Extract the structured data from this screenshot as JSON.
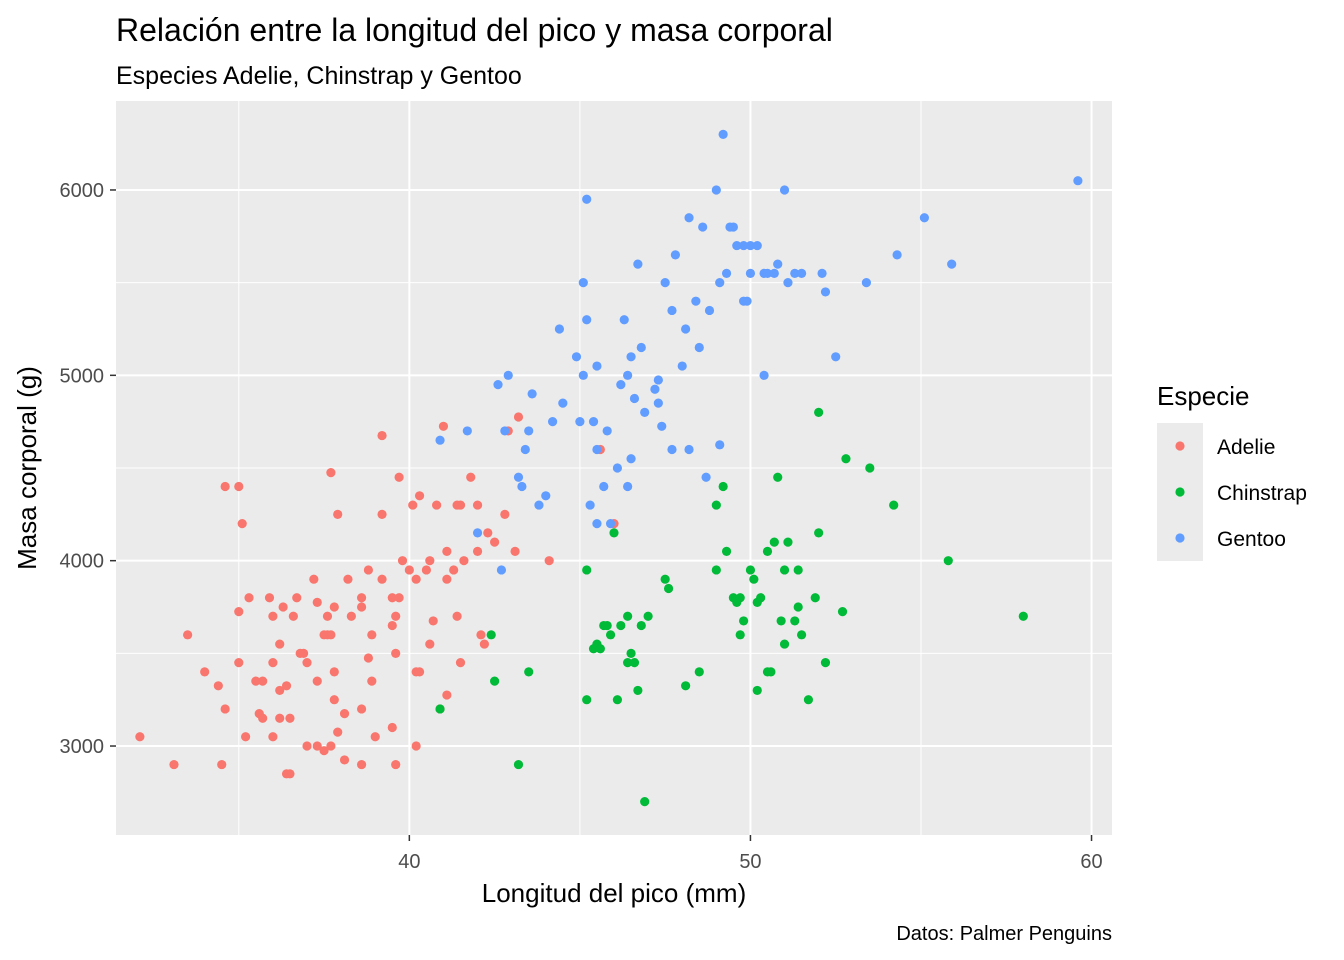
{
  "chart_data": {
    "type": "scatter",
    "title": "Relación entre la longitud del pico y masa corporal",
    "subtitle": "Especies Adelie, Chinstrap y Gentoo",
    "xlabel": "Longitud del pico (mm)",
    "ylabel": "Masa corporal (g)",
    "caption": "Datos: Palmer Penguins",
    "xlim": [
      31.4,
      60.6
    ],
    "ylim": [
      2520,
      6480
    ],
    "xticks": [
      40,
      50,
      60
    ],
    "yticks": [
      3000,
      4000,
      5000,
      6000
    ],
    "grid": true,
    "legend_title": "Especie",
    "legend_position": "right",
    "series": [
      {
        "name": "Adelie",
        "color": "#F8766D",
        "points": [
          [
            32.1,
            3050
          ],
          [
            33.1,
            2900
          ],
          [
            33.5,
            3600
          ],
          [
            34.0,
            3400
          ],
          [
            34.4,
            3325
          ],
          [
            34.5,
            2900
          ],
          [
            34.6,
            3200
          ],
          [
            34.6,
            4400
          ],
          [
            35.0,
            3450
          ],
          [
            35.0,
            3725
          ],
          [
            35.1,
            4200
          ],
          [
            35.2,
            3050
          ],
          [
            35.3,
            3800
          ],
          [
            35.5,
            3350
          ],
          [
            35.6,
            3175
          ],
          [
            35.7,
            3350
          ],
          [
            35.7,
            3150
          ],
          [
            35.9,
            3800
          ],
          [
            36.0,
            3700
          ],
          [
            36.0,
            3450
          ],
          [
            36.0,
            3050
          ],
          [
            36.2,
            3550
          ],
          [
            36.2,
            3300
          ],
          [
            36.2,
            3150
          ],
          [
            36.3,
            3750
          ],
          [
            36.4,
            3325
          ],
          [
            36.4,
            2850
          ],
          [
            36.5,
            3150
          ],
          [
            36.5,
            2850
          ],
          [
            36.6,
            3700
          ],
          [
            36.7,
            3800
          ],
          [
            36.8,
            3500
          ],
          [
            36.9,
            3500
          ],
          [
            37.0,
            3450
          ],
          [
            37.0,
            3000
          ],
          [
            37.2,
            3900
          ],
          [
            37.3,
            3775
          ],
          [
            37.3,
            3350
          ],
          [
            37.3,
            3000
          ],
          [
            37.5,
            2975
          ],
          [
            37.6,
            3700
          ],
          [
            37.6,
            3600
          ],
          [
            37.7,
            3600
          ],
          [
            37.7,
            4475
          ],
          [
            37.8,
            3400
          ],
          [
            37.8,
            3250
          ],
          [
            37.8,
            3750
          ],
          [
            37.9,
            3075
          ],
          [
            37.9,
            4250
          ],
          [
            38.1,
            3175
          ],
          [
            38.1,
            2925
          ],
          [
            38.2,
            3900
          ],
          [
            38.3,
            3700
          ],
          [
            38.6,
            3800
          ],
          [
            38.6,
            3750
          ],
          [
            38.6,
            3200
          ],
          [
            38.6,
            2900
          ],
          [
            38.8,
            3950
          ],
          [
            38.9,
            3350
          ],
          [
            38.9,
            3600
          ],
          [
            39.0,
            3050
          ],
          [
            39.2,
            4675
          ],
          [
            39.2,
            3900
          ],
          [
            39.2,
            4250
          ],
          [
            39.5,
            3650
          ],
          [
            39.5,
            3800
          ],
          [
            39.6,
            3700
          ],
          [
            39.6,
            2900
          ],
          [
            39.6,
            3500
          ],
          [
            39.7,
            4450
          ],
          [
            39.7,
            3800
          ],
          [
            39.8,
            4000
          ],
          [
            40.1,
            4300
          ],
          [
            40.2,
            3400
          ],
          [
            40.2,
            3900
          ],
          [
            40.3,
            3400
          ],
          [
            40.3,
            4350
          ],
          [
            40.5,
            3950
          ],
          [
            40.6,
            3550
          ],
          [
            40.6,
            4000
          ],
          [
            40.7,
            3675
          ],
          [
            40.8,
            4300
          ],
          [
            40.9,
            3200
          ],
          [
            41.0,
            4725
          ],
          [
            41.1,
            3900
          ],
          [
            41.1,
            4050
          ],
          [
            41.1,
            3275
          ],
          [
            41.3,
            3950
          ],
          [
            41.4,
            3700
          ],
          [
            41.5,
            4300
          ],
          [
            41.6,
            4000
          ],
          [
            41.8,
            4450
          ],
          [
            42.0,
            4050
          ],
          [
            42.1,
            3600
          ],
          [
            42.2,
            3550
          ],
          [
            42.3,
            4150
          ],
          [
            42.5,
            4100
          ],
          [
            42.8,
            4250
          ],
          [
            42.9,
            4700
          ],
          [
            43.1,
            4050
          ],
          [
            43.2,
            4775
          ],
          [
            44.1,
            4000
          ],
          [
            45.6,
            4600
          ],
          [
            46.0,
            4200
          ],
          [
            35.0,
            4400
          ],
          [
            37.5,
            3600
          ],
          [
            38.8,
            3475
          ],
          [
            39.5,
            3100
          ],
          [
            40.2,
            3000
          ],
          [
            41.5,
            3450
          ],
          [
            37.7,
            3000
          ],
          [
            40.0,
            3950
          ],
          [
            42.0,
            4300
          ],
          [
            41.4,
            4300
          ]
        ]
      },
      {
        "name": "Chinstrap",
        "color": "#00BA38",
        "points": [
          [
            40.9,
            3200
          ],
          [
            42.4,
            3600
          ],
          [
            42.5,
            3350
          ],
          [
            43.2,
            2900
          ],
          [
            43.5,
            3400
          ],
          [
            45.2,
            3250
          ],
          [
            45.2,
            3950
          ],
          [
            45.4,
            3525
          ],
          [
            45.5,
            3550
          ],
          [
            45.6,
            3525
          ],
          [
            45.7,
            3650
          ],
          [
            45.8,
            3650
          ],
          [
            45.9,
            3600
          ],
          [
            46.0,
            4150
          ],
          [
            46.1,
            3250
          ],
          [
            46.2,
            3650
          ],
          [
            46.4,
            3700
          ],
          [
            46.5,
            3500
          ],
          [
            46.6,
            3450
          ],
          [
            46.7,
            3300
          ],
          [
            46.8,
            3650
          ],
          [
            46.9,
            2700
          ],
          [
            47.0,
            3700
          ],
          [
            47.5,
            3900
          ],
          [
            47.6,
            3850
          ],
          [
            48.1,
            3325
          ],
          [
            48.5,
            3400
          ],
          [
            49.0,
            4300
          ],
          [
            49.0,
            3950
          ],
          [
            49.2,
            4400
          ],
          [
            49.3,
            4050
          ],
          [
            49.5,
            3800
          ],
          [
            49.6,
            3775
          ],
          [
            49.7,
            3600
          ],
          [
            49.8,
            3675
          ],
          [
            50.0,
            3950
          ],
          [
            50.1,
            3900
          ],
          [
            50.2,
            3775
          ],
          [
            50.3,
            3800
          ],
          [
            50.5,
            4050
          ],
          [
            50.6,
            3400
          ],
          [
            50.7,
            4100
          ],
          [
            50.8,
            4450
          ],
          [
            50.9,
            3675
          ],
          [
            51.0,
            3550
          ],
          [
            51.1,
            4100
          ],
          [
            51.3,
            3675
          ],
          [
            51.4,
            3950
          ],
          [
            51.5,
            3600
          ],
          [
            51.7,
            3250
          ],
          [
            51.9,
            3800
          ],
          [
            52.0,
            4800
          ],
          [
            52.0,
            4150
          ],
          [
            52.2,
            3450
          ],
          [
            52.7,
            3725
          ],
          [
            52.8,
            4550
          ],
          [
            53.5,
            4500
          ],
          [
            54.2,
            4300
          ],
          [
            55.8,
            4000
          ],
          [
            58.0,
            3700
          ],
          [
            50.2,
            3300
          ],
          [
            46.4,
            3450
          ],
          [
            49.7,
            3800
          ],
          [
            51.4,
            3750
          ],
          [
            50.5,
            3400
          ],
          [
            51.0,
            3950
          ]
        ]
      },
      {
        "name": "Gentoo",
        "color": "#619CFF",
        "points": [
          [
            40.9,
            4650
          ],
          [
            41.7,
            4700
          ],
          [
            42.0,
            4150
          ],
          [
            42.6,
            4950
          ],
          [
            42.7,
            3950
          ],
          [
            42.8,
            4700
          ],
          [
            42.9,
            5000
          ],
          [
            43.2,
            4450
          ],
          [
            43.3,
            4400
          ],
          [
            43.4,
            4600
          ],
          [
            43.5,
            4700
          ],
          [
            43.6,
            4900
          ],
          [
            43.8,
            4300
          ],
          [
            44.0,
            4350
          ],
          [
            44.4,
            5250
          ],
          [
            44.5,
            4850
          ],
          [
            44.9,
            5100
          ],
          [
            45.0,
            4750
          ],
          [
            45.1,
            5000
          ],
          [
            45.2,
            5300
          ],
          [
            45.2,
            5950
          ],
          [
            45.3,
            4300
          ],
          [
            45.4,
            4750
          ],
          [
            45.5,
            4200
          ],
          [
            45.5,
            5050
          ],
          [
            45.7,
            4400
          ],
          [
            45.8,
            4700
          ],
          [
            45.9,
            4200
          ],
          [
            46.1,
            4500
          ],
          [
            46.2,
            4950
          ],
          [
            46.3,
            5300
          ],
          [
            46.4,
            5000
          ],
          [
            46.5,
            4550
          ],
          [
            46.6,
            4875
          ],
          [
            46.8,
            5150
          ],
          [
            46.9,
            4800
          ],
          [
            47.2,
            4925
          ],
          [
            47.3,
            4975
          ],
          [
            47.4,
            4725
          ],
          [
            47.5,
            5500
          ],
          [
            47.7,
            4600
          ],
          [
            47.8,
            5650
          ],
          [
            48.1,
            5250
          ],
          [
            48.2,
            4600
          ],
          [
            48.4,
            5400
          ],
          [
            48.5,
            5150
          ],
          [
            48.6,
            5800
          ],
          [
            48.7,
            4450
          ],
          [
            48.8,
            5350
          ],
          [
            49.1,
            5500
          ],
          [
            49.2,
            6300
          ],
          [
            49.3,
            5550
          ],
          [
            49.4,
            5800
          ],
          [
            49.5,
            5800
          ],
          [
            49.6,
            5700
          ],
          [
            49.8,
            5400
          ],
          [
            49.9,
            5400
          ],
          [
            50.0,
            5700
          ],
          [
            50.2,
            5700
          ],
          [
            50.4,
            5550
          ],
          [
            50.5,
            5550
          ],
          [
            50.7,
            5550
          ],
          [
            50.8,
            5600
          ],
          [
            51.1,
            5500
          ],
          [
            51.3,
            5550
          ],
          [
            51.5,
            5550
          ],
          [
            52.1,
            5550
          ],
          [
            52.2,
            5450
          ],
          [
            52.5,
            5100
          ],
          [
            53.4,
            5500
          ],
          [
            54.3,
            5650
          ],
          [
            55.1,
            5850
          ],
          [
            55.9,
            5600
          ],
          [
            59.6,
            6050
          ],
          [
            49.0,
            6000
          ],
          [
            51.0,
            6000
          ],
          [
            48.2,
            5850
          ],
          [
            49.1,
            4625
          ],
          [
            50.0,
            5550
          ],
          [
            45.1,
            5500
          ],
          [
            46.5,
            5100
          ],
          [
            48.0,
            5050
          ],
          [
            47.7,
            5350
          ],
          [
            45.5,
            4600
          ],
          [
            46.7,
            5600
          ],
          [
            49.8,
            5700
          ],
          [
            50.4,
            5000
          ],
          [
            44.2,
            4750
          ],
          [
            46.4,
            4400
          ],
          [
            47.3,
            4850
          ]
        ]
      }
    ]
  }
}
